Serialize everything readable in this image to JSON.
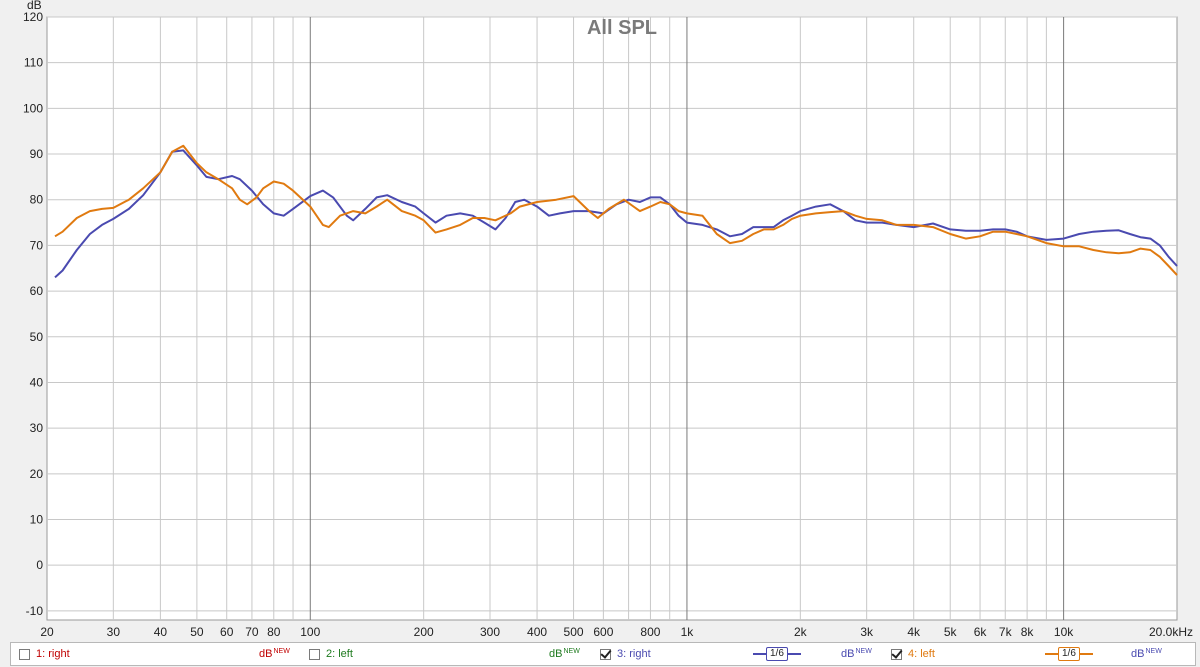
{
  "chart_data": {
    "type": "line",
    "title": "All SPL",
    "ylabel": "dB",
    "xlabel": "",
    "x_scale": "log",
    "xlim": [
      20,
      20000
    ],
    "ylim": [
      -12,
      120
    ],
    "grid": true,
    "y_ticks": [
      -10,
      0,
      10,
      20,
      30,
      40,
      50,
      60,
      70,
      80,
      90,
      100,
      110,
      120
    ],
    "x_ticks": [
      {
        "value": 20,
        "label": "20"
      },
      {
        "value": 30,
        "label": "30"
      },
      {
        "value": 40,
        "label": "40"
      },
      {
        "value": 50,
        "label": "50"
      },
      {
        "value": 60,
        "label": "60"
      },
      {
        "value": 70,
        "label": "70"
      },
      {
        "value": 80,
        "label": "80"
      },
      {
        "value": 100,
        "label": "100"
      },
      {
        "value": 200,
        "label": "200"
      },
      {
        "value": 300,
        "label": "300"
      },
      {
        "value": 400,
        "label": "400"
      },
      {
        "value": 500,
        "label": "500"
      },
      {
        "value": 600,
        "label": "600"
      },
      {
        "value": 800,
        "label": "800"
      },
      {
        "value": 1000,
        "label": "1k"
      },
      {
        "value": 2000,
        "label": "2k"
      },
      {
        "value": 3000,
        "label": "3k"
      },
      {
        "value": 4000,
        "label": "4k"
      },
      {
        "value": 5000,
        "label": "5k"
      },
      {
        "value": 6000,
        "label": "6k"
      },
      {
        "value": 7000,
        "label": "7k"
      },
      {
        "value": 8000,
        "label": "8k"
      },
      {
        "value": 10000,
        "label": "10k"
      },
      {
        "value": 20000,
        "label": "20.0kHz"
      }
    ],
    "series": [
      {
        "name": "3: right",
        "color": "#4a4ab0",
        "points": [
          [
            21,
            63
          ],
          [
            22,
            64.5
          ],
          [
            24,
            69
          ],
          [
            26,
            72.5
          ],
          [
            28,
            74.5
          ],
          [
            30,
            75.8
          ],
          [
            33,
            78
          ],
          [
            36,
            81
          ],
          [
            40,
            86
          ],
          [
            43,
            90.5
          ],
          [
            46,
            90.8
          ],
          [
            50,
            87.5
          ],
          [
            53,
            85
          ],
          [
            57,
            84.5
          ],
          [
            62,
            85.2
          ],
          [
            65,
            84.5
          ],
          [
            70,
            82
          ],
          [
            75,
            79
          ],
          [
            80,
            77
          ],
          [
            85,
            76.5
          ],
          [
            90,
            78
          ],
          [
            100,
            80.8
          ],
          [
            108,
            82
          ],
          [
            115,
            80.5
          ],
          [
            125,
            76.5
          ],
          [
            130,
            75.5
          ],
          [
            140,
            78
          ],
          [
            150,
            80.5
          ],
          [
            160,
            81
          ],
          [
            175,
            79.5
          ],
          [
            190,
            78.5
          ],
          [
            200,
            77
          ],
          [
            215,
            75
          ],
          [
            230,
            76.5
          ],
          [
            250,
            77
          ],
          [
            270,
            76.5
          ],
          [
            290,
            75
          ],
          [
            310,
            73.5
          ],
          [
            330,
            76
          ],
          [
            350,
            79.5
          ],
          [
            370,
            80
          ],
          [
            400,
            78.5
          ],
          [
            430,
            76.5
          ],
          [
            460,
            77
          ],
          [
            500,
            77.5
          ],
          [
            550,
            77.5
          ],
          [
            600,
            77
          ],
          [
            650,
            79
          ],
          [
            700,
            80
          ],
          [
            750,
            79.5
          ],
          [
            800,
            80.5
          ],
          [
            850,
            80.5
          ],
          [
            900,
            79
          ],
          [
            950,
            76.5
          ],
          [
            1000,
            75
          ],
          [
            1100,
            74.5
          ],
          [
            1200,
            73.5
          ],
          [
            1300,
            72
          ],
          [
            1400,
            72.5
          ],
          [
            1500,
            74
          ],
          [
            1600,
            74
          ],
          [
            1700,
            74
          ],
          [
            1800,
            75.5
          ],
          [
            1900,
            76.5
          ],
          [
            2000,
            77.5
          ],
          [
            2200,
            78.5
          ],
          [
            2400,
            79
          ],
          [
            2600,
            77.5
          ],
          [
            2800,
            75.5
          ],
          [
            3000,
            75
          ],
          [
            3300,
            75
          ],
          [
            3600,
            74.5
          ],
          [
            4000,
            74
          ],
          [
            4500,
            74.8
          ],
          [
            5000,
            73.5
          ],
          [
            5500,
            73.2
          ],
          [
            6000,
            73.2
          ],
          [
            6500,
            73.5
          ],
          [
            7000,
            73.5
          ],
          [
            7500,
            73
          ],
          [
            8000,
            72
          ],
          [
            9000,
            71.2
          ],
          [
            10000,
            71.5
          ],
          [
            11000,
            72.5
          ],
          [
            12000,
            73
          ],
          [
            13000,
            73.2
          ],
          [
            14000,
            73.3
          ],
          [
            15000,
            72.5
          ],
          [
            16000,
            71.8
          ],
          [
            17000,
            71.5
          ],
          [
            18000,
            70
          ],
          [
            19000,
            67.5
          ],
          [
            20000,
            65.5
          ]
        ]
      },
      {
        "name": "4: left",
        "color": "#e07a10",
        "points": [
          [
            21,
            72
          ],
          [
            22,
            73
          ],
          [
            24,
            76
          ],
          [
            26,
            77.5
          ],
          [
            28,
            78
          ],
          [
            30,
            78.2
          ],
          [
            33,
            80
          ],
          [
            36,
            82.5
          ],
          [
            40,
            86
          ],
          [
            43,
            90.5
          ],
          [
            46,
            91.8
          ],
          [
            50,
            88
          ],
          [
            53,
            86
          ],
          [
            57,
            84.5
          ],
          [
            62,
            82.5
          ],
          [
            65,
            80
          ],
          [
            68,
            79
          ],
          [
            72,
            80.5
          ],
          [
            75,
            82.5
          ],
          [
            80,
            84
          ],
          [
            85,
            83.5
          ],
          [
            90,
            82
          ],
          [
            100,
            78.5
          ],
          [
            108,
            74.5
          ],
          [
            112,
            74
          ],
          [
            120,
            76.5
          ],
          [
            130,
            77.5
          ],
          [
            140,
            77
          ],
          [
            150,
            78.5
          ],
          [
            160,
            80
          ],
          [
            175,
            77.5
          ],
          [
            190,
            76.5
          ],
          [
            200,
            75.5
          ],
          [
            215,
            72.8
          ],
          [
            230,
            73.5
          ],
          [
            250,
            74.5
          ],
          [
            270,
            76
          ],
          [
            290,
            76
          ],
          [
            310,
            75.5
          ],
          [
            340,
            77
          ],
          [
            360,
            78.5
          ],
          [
            400,
            79.5
          ],
          [
            450,
            80
          ],
          [
            500,
            80.8
          ],
          [
            550,
            77.5
          ],
          [
            580,
            76
          ],
          [
            620,
            78
          ],
          [
            680,
            80
          ],
          [
            750,
            77.5
          ],
          [
            800,
            78.5
          ],
          [
            850,
            79.5
          ],
          [
            900,
            79
          ],
          [
            950,
            77.5
          ],
          [
            1000,
            77
          ],
          [
            1100,
            76.5
          ],
          [
            1200,
            72.5
          ],
          [
            1300,
            70.5
          ],
          [
            1400,
            71
          ],
          [
            1500,
            72.5
          ],
          [
            1600,
            73.5
          ],
          [
            1700,
            73.5
          ],
          [
            1800,
            74.5
          ],
          [
            1900,
            75.8
          ],
          [
            2000,
            76.5
          ],
          [
            2200,
            77
          ],
          [
            2400,
            77.3
          ],
          [
            2600,
            77.5
          ],
          [
            2800,
            76.5
          ],
          [
            3000,
            75.8
          ],
          [
            3300,
            75.5
          ],
          [
            3600,
            74.5
          ],
          [
            4000,
            74.5
          ],
          [
            4500,
            74
          ],
          [
            5000,
            72.5
          ],
          [
            5500,
            71.5
          ],
          [
            6000,
            72
          ],
          [
            6500,
            73
          ],
          [
            7000,
            73
          ],
          [
            7500,
            72.5
          ],
          [
            8000,
            72
          ],
          [
            9000,
            70.5
          ],
          [
            10000,
            69.8
          ],
          [
            11000,
            69.8
          ],
          [
            12000,
            69
          ],
          [
            13000,
            68.5
          ],
          [
            14000,
            68.3
          ],
          [
            15000,
            68.5
          ],
          [
            16000,
            69.3
          ],
          [
            17000,
            69
          ],
          [
            18000,
            67.5
          ],
          [
            19000,
            65.5
          ],
          [
            20000,
            63.5
          ]
        ]
      }
    ]
  },
  "legend": {
    "items": [
      {
        "name": "1: right",
        "checked": false,
        "color": "#c00000",
        "unit": "dB",
        "unit_color": "#c00000",
        "unit_sup": "NEW"
      },
      {
        "name": "2: left",
        "checked": false,
        "color": "#1e7a1e",
        "unit": "dB",
        "unit_color": "#1e7a1e",
        "unit_sup": "NEW"
      },
      {
        "name": "3: right",
        "checked": true,
        "color": "#4a4ab0",
        "smooth": "1/6",
        "unit": "dB",
        "unit_color": "#4a4ab0",
        "unit_sup": "NEW"
      },
      {
        "name": "4: left",
        "checked": true,
        "color": "#e07a10",
        "smooth": "1/6",
        "unit": "dB",
        "unit_color": "#4a4ab0",
        "unit_sup": "NEW"
      }
    ]
  }
}
